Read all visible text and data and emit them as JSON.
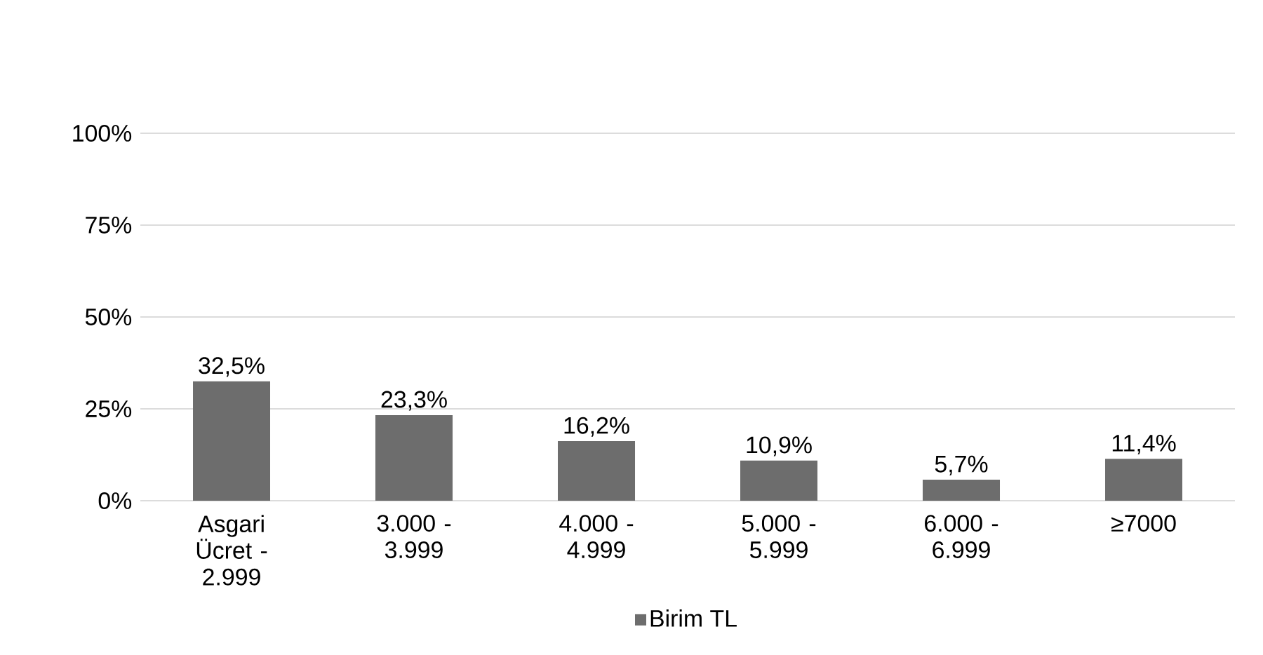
{
  "chart_data": {
    "type": "bar",
    "categories": [
      "Asgari Ücret - 2.999",
      "3.000 - 3.999",
      "4.000 - 4.999",
      "5.000 - 5.999",
      "6.000 - 6.999",
      "≥7000"
    ],
    "series": [
      {
        "name": "Birim TL",
        "color": "#6d6d6d",
        "values": [
          32.5,
          23.3,
          16.2,
          10.9,
          5.7,
          11.4
        ],
        "value_labels": [
          "32,5%",
          "23,3%",
          "16,2%",
          "10,9%",
          "5,7%",
          "11,4%"
        ]
      }
    ],
    "ylim": [
      0,
      100
    ],
    "yticks": [
      {
        "value": 0,
        "label": "0%"
      },
      {
        "value": 25,
        "label": "25%"
      },
      {
        "value": 50,
        "label": "50%"
      },
      {
        "value": 75,
        "label": "75%"
      },
      {
        "value": 100,
        "label": "100%"
      }
    ],
    "grid": "y",
    "legend": "bottom"
  }
}
